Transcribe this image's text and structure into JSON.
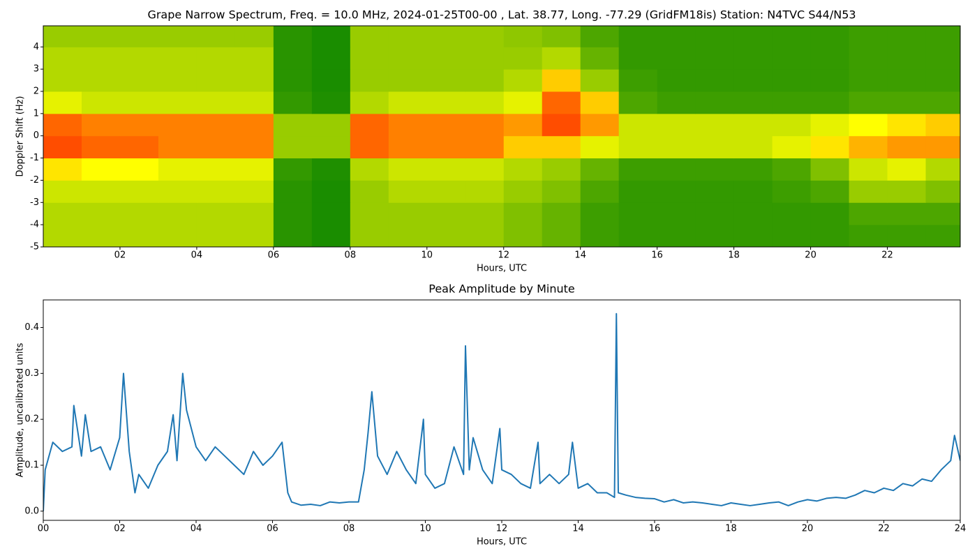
{
  "chart_data": [
    {
      "type": "heatmap",
      "title": "Grape Narrow Spectrum, Freq. = 10.0 MHz, 2024-01-25T00-00 , Lat.  38.77, Long. -77.29 (GridFM18is) Station: N4TVC S44/N53",
      "xlabel": "Hours, UTC",
      "ylabel": "Doppler Shift (Hz)",
      "xlim": [
        0,
        23.9
      ],
      "ylim": [
        -5,
        4.95
      ],
      "xticks": [
        {
          "value": 2,
          "label": "02"
        },
        {
          "value": 4,
          "label": "04"
        },
        {
          "value": 6,
          "label": "06"
        },
        {
          "value": 8,
          "label": "08"
        },
        {
          "value": 10,
          "label": "10"
        },
        {
          "value": 12,
          "label": "12"
        },
        {
          "value": 14,
          "label": "14"
        },
        {
          "value": 16,
          "label": "16"
        },
        {
          "value": 18,
          "label": "18"
        },
        {
          "value": 20,
          "label": "20"
        },
        {
          "value": 22,
          "label": "22"
        }
      ],
      "yticks": [
        -5,
        -4,
        -3,
        -2,
        -1,
        0,
        1,
        2,
        3,
        4
      ],
      "colorscale": [
        "#008000",
        "#ffff00",
        "#ff0000"
      ],
      "x": [
        0.5,
        1.5,
        2.5,
        3.5,
        4.5,
        5.5,
        6.5,
        7.5,
        8.5,
        9.5,
        10.5,
        11.5,
        12.5,
        13.5,
        14.5,
        15.5,
        16.5,
        17.5,
        18.5,
        19.5,
        20.5,
        21.5,
        22.5,
        23.5
      ],
      "y": [
        -4.5,
        -3.5,
        -2.5,
        -1.5,
        -0.5,
        0.5,
        1.5,
        2.5,
        3.5,
        4.5
      ],
      "z": [
        [
          0.35,
          0.35,
          0.35,
          0.35,
          0.35,
          0.35,
          0.08,
          0.05,
          0.3,
          0.3,
          0.3,
          0.3,
          0.25,
          0.2,
          0.12,
          0.1,
          0.1,
          0.1,
          0.1,
          0.1,
          0.1,
          0.12,
          0.12,
          0.12
        ],
        [
          0.35,
          0.35,
          0.35,
          0.35,
          0.35,
          0.35,
          0.08,
          0.05,
          0.3,
          0.3,
          0.3,
          0.3,
          0.25,
          0.2,
          0.12,
          0.1,
          0.1,
          0.1,
          0.1,
          0.1,
          0.1,
          0.15,
          0.15,
          0.15
        ],
        [
          0.4,
          0.4,
          0.4,
          0.4,
          0.4,
          0.4,
          0.08,
          0.05,
          0.3,
          0.35,
          0.35,
          0.35,
          0.3,
          0.25,
          0.15,
          0.1,
          0.1,
          0.1,
          0.1,
          0.12,
          0.15,
          0.3,
          0.3,
          0.25
        ],
        [
          0.55,
          0.5,
          0.5,
          0.45,
          0.45,
          0.45,
          0.1,
          0.06,
          0.35,
          0.4,
          0.4,
          0.4,
          0.35,
          0.3,
          0.2,
          0.12,
          0.12,
          0.12,
          0.12,
          0.15,
          0.25,
          0.4,
          0.45,
          0.35
        ],
        [
          0.85,
          0.8,
          0.8,
          0.75,
          0.75,
          0.75,
          0.3,
          0.3,
          0.8,
          0.75,
          0.75,
          0.75,
          0.6,
          0.6,
          0.45,
          0.4,
          0.4,
          0.4,
          0.4,
          0.45,
          0.55,
          0.65,
          0.7,
          0.7
        ],
        [
          0.8,
          0.75,
          0.75,
          0.75,
          0.75,
          0.75,
          0.3,
          0.3,
          0.8,
          0.75,
          0.75,
          0.75,
          0.7,
          0.85,
          0.7,
          0.4,
          0.4,
          0.4,
          0.4,
          0.4,
          0.45,
          0.5,
          0.55,
          0.6
        ],
        [
          0.45,
          0.4,
          0.4,
          0.4,
          0.4,
          0.4,
          0.1,
          0.06,
          0.35,
          0.4,
          0.4,
          0.4,
          0.45,
          0.8,
          0.6,
          0.15,
          0.12,
          0.12,
          0.12,
          0.12,
          0.12,
          0.15,
          0.15,
          0.15
        ],
        [
          0.35,
          0.35,
          0.35,
          0.35,
          0.35,
          0.35,
          0.08,
          0.05,
          0.3,
          0.3,
          0.3,
          0.3,
          0.35,
          0.6,
          0.3,
          0.12,
          0.1,
          0.1,
          0.1,
          0.1,
          0.1,
          0.12,
          0.12,
          0.12
        ],
        [
          0.35,
          0.35,
          0.35,
          0.35,
          0.35,
          0.35,
          0.08,
          0.05,
          0.3,
          0.3,
          0.3,
          0.3,
          0.3,
          0.35,
          0.2,
          0.1,
          0.1,
          0.1,
          0.1,
          0.1,
          0.1,
          0.12,
          0.12,
          0.12
        ],
        [
          0.3,
          0.3,
          0.3,
          0.3,
          0.3,
          0.3,
          0.08,
          0.05,
          0.3,
          0.3,
          0.3,
          0.3,
          0.28,
          0.25,
          0.15,
          0.1,
          0.1,
          0.1,
          0.1,
          0.1,
          0.1,
          0.12,
          0.12,
          0.12
        ]
      ]
    },
    {
      "type": "line",
      "title": "Peak Amplitude by Minute",
      "xlabel": "Hours, UTC",
      "ylabel": "Amplitude, uncalibrated units",
      "xlim": [
        0,
        24
      ],
      "ylim": [
        -0.02,
        0.46
      ],
      "xticks": [
        {
          "value": 0,
          "label": "00"
        },
        {
          "value": 2,
          "label": "02"
        },
        {
          "value": 4,
          "label": "04"
        },
        {
          "value": 6,
          "label": "06"
        },
        {
          "value": 8,
          "label": "08"
        },
        {
          "value": 10,
          "label": "10"
        },
        {
          "value": 12,
          "label": "12"
        },
        {
          "value": 14,
          "label": "14"
        },
        {
          "value": 16,
          "label": "16"
        },
        {
          "value": 18,
          "label": "18"
        },
        {
          "value": 20,
          "label": "20"
        },
        {
          "value": 22,
          "label": "22"
        },
        {
          "value": 24,
          "label": "24"
        }
      ],
      "yticks": [
        {
          "value": 0,
          "label": "0.0"
        },
        0.1,
        0.2,
        0.3,
        0.4
      ],
      "color": "#1f77b4",
      "x": [
        0,
        0.05,
        0.25,
        0.5,
        0.75,
        0.8,
        1.0,
        1.1,
        1.25,
        1.5,
        1.75,
        2.0,
        2.1,
        2.25,
        2.4,
        2.5,
        2.75,
        3.0,
        3.25,
        3.4,
        3.5,
        3.65,
        3.75,
        4.0,
        4.25,
        4.5,
        4.75,
        5.0,
        5.25,
        5.5,
        5.75,
        6.0,
        6.25,
        6.4,
        6.5,
        6.75,
        7.0,
        7.25,
        7.5,
        7.75,
        8.0,
        8.25,
        8.4,
        8.5,
        8.6,
        8.75,
        9.0,
        9.25,
        9.5,
        9.75,
        9.95,
        10.0,
        10.25,
        10.5,
        10.75,
        11.0,
        11.05,
        11.15,
        11.25,
        11.5,
        11.75,
        11.95,
        12.0,
        12.25,
        12.5,
        12.75,
        12.95,
        13.0,
        13.25,
        13.5,
        13.75,
        13.85,
        14.0,
        14.25,
        14.5,
        14.75,
        14.95,
        15.0,
        15.05,
        15.25,
        15.5,
        15.75,
        16.0,
        16.25,
        16.5,
        16.75,
        17.0,
        17.25,
        17.5,
        17.75,
        18.0,
        18.25,
        18.5,
        18.75,
        19.0,
        19.25,
        19.5,
        19.75,
        20.0,
        20.25,
        20.5,
        20.75,
        21.0,
        21.25,
        21.5,
        21.75,
        22.0,
        22.25,
        22.5,
        22.75,
        23.0,
        23.25,
        23.5,
        23.75,
        23.85,
        24.0
      ],
      "values": [
        0.0,
        0.09,
        0.15,
        0.13,
        0.14,
        0.23,
        0.12,
        0.21,
        0.13,
        0.14,
        0.09,
        0.16,
        0.3,
        0.13,
        0.04,
        0.08,
        0.05,
        0.1,
        0.13,
        0.21,
        0.11,
        0.3,
        0.22,
        0.14,
        0.11,
        0.14,
        0.12,
        0.1,
        0.08,
        0.13,
        0.1,
        0.12,
        0.15,
        0.04,
        0.02,
        0.013,
        0.015,
        0.012,
        0.02,
        0.018,
        0.02,
        0.02,
        0.09,
        0.17,
        0.26,
        0.12,
        0.08,
        0.13,
        0.09,
        0.06,
        0.2,
        0.08,
        0.05,
        0.06,
        0.14,
        0.08,
        0.36,
        0.09,
        0.16,
        0.09,
        0.06,
        0.18,
        0.09,
        0.08,
        0.06,
        0.05,
        0.15,
        0.06,
        0.08,
        0.06,
        0.08,
        0.15,
        0.05,
        0.06,
        0.04,
        0.04,
        0.03,
        0.43,
        0.04,
        0.035,
        0.03,
        0.028,
        0.027,
        0.02,
        0.025,
        0.018,
        0.02,
        0.018,
        0.015,
        0.012,
        0.018,
        0.015,
        0.012,
        0.015,
        0.018,
        0.02,
        0.012,
        0.02,
        0.025,
        0.022,
        0.028,
        0.03,
        0.028,
        0.035,
        0.045,
        0.04,
        0.05,
        0.045,
        0.06,
        0.055,
        0.07,
        0.065,
        0.09,
        0.11,
        0.165,
        0.11
      ]
    }
  ]
}
